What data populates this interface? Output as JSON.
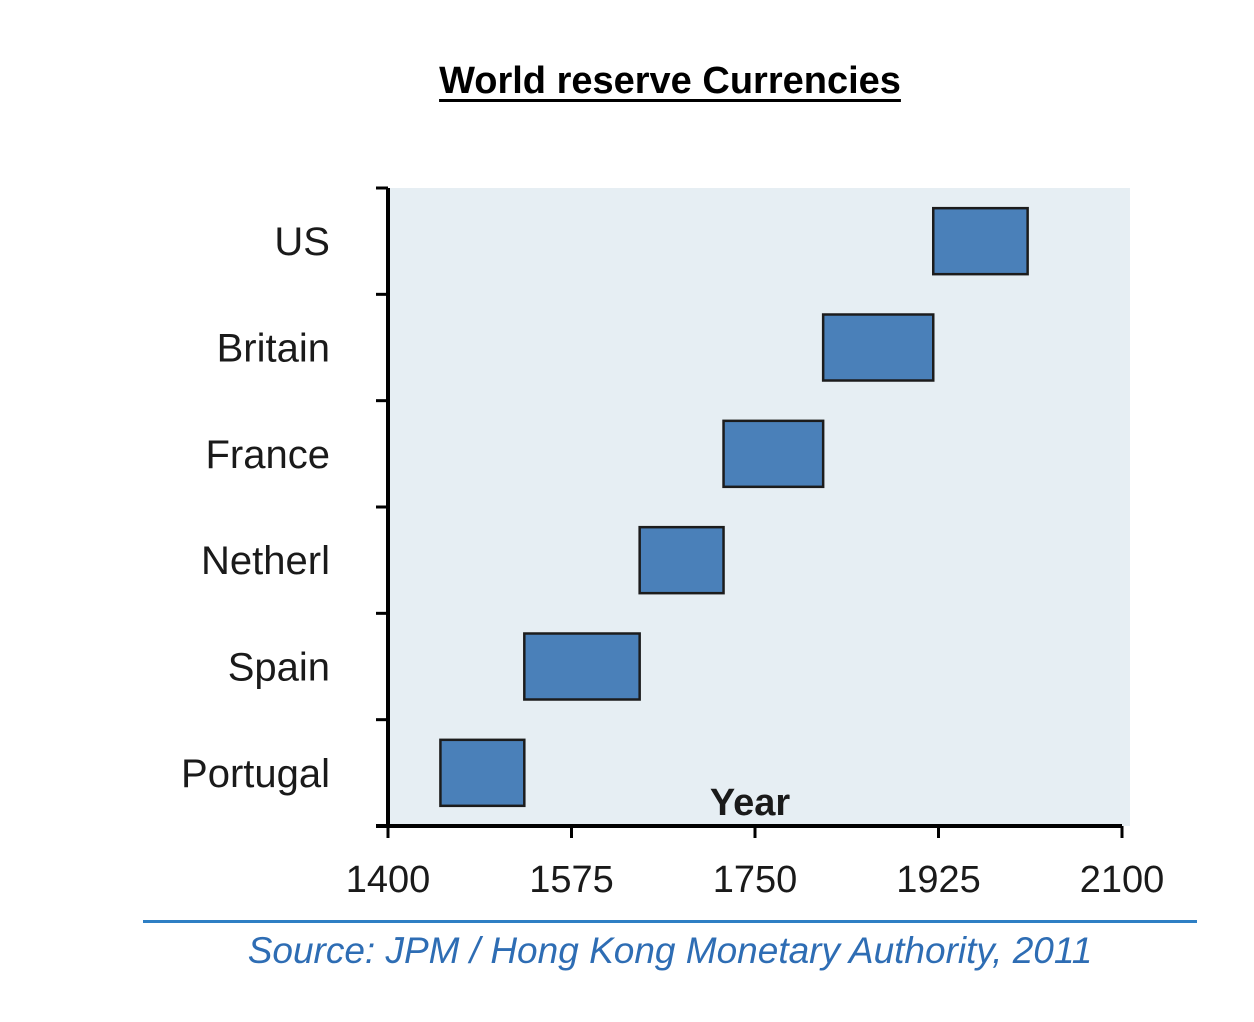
{
  "title": "World reserve Currencies",
  "source": "Source: JPM / Hong Kong Monetary Authority, 2011",
  "colors": {
    "bar_fill": "#4a80b9",
    "bar_stroke": "#1c1c1c",
    "plot_bg": "#e6eef3",
    "source_blue": "#2e6db4"
  },
  "chart_data": {
    "type": "bar",
    "orientation": "horizontal-range",
    "xlabel": "Year",
    "ylabel": "",
    "xlim": [
      1400,
      2100
    ],
    "x_ticks": [
      "1400",
      "1575",
      "1750",
      "1925",
      "2100"
    ],
    "categories": [
      "US",
      "Britain",
      "France",
      "Netherl",
      "Spain",
      "Portugal"
    ],
    "ranges": [
      {
        "category": "US",
        "start": 1920,
        "end": 2010
      },
      {
        "category": "Britain",
        "start": 1815,
        "end": 1920
      },
      {
        "category": "France",
        "start": 1720,
        "end": 1815
      },
      {
        "category": "Netherl",
        "start": 1640,
        "end": 1720
      },
      {
        "category": "Spain",
        "start": 1530,
        "end": 1640
      },
      {
        "category": "Portugal",
        "start": 1450,
        "end": 1530
      }
    ],
    "grid": false,
    "legend": "none"
  }
}
